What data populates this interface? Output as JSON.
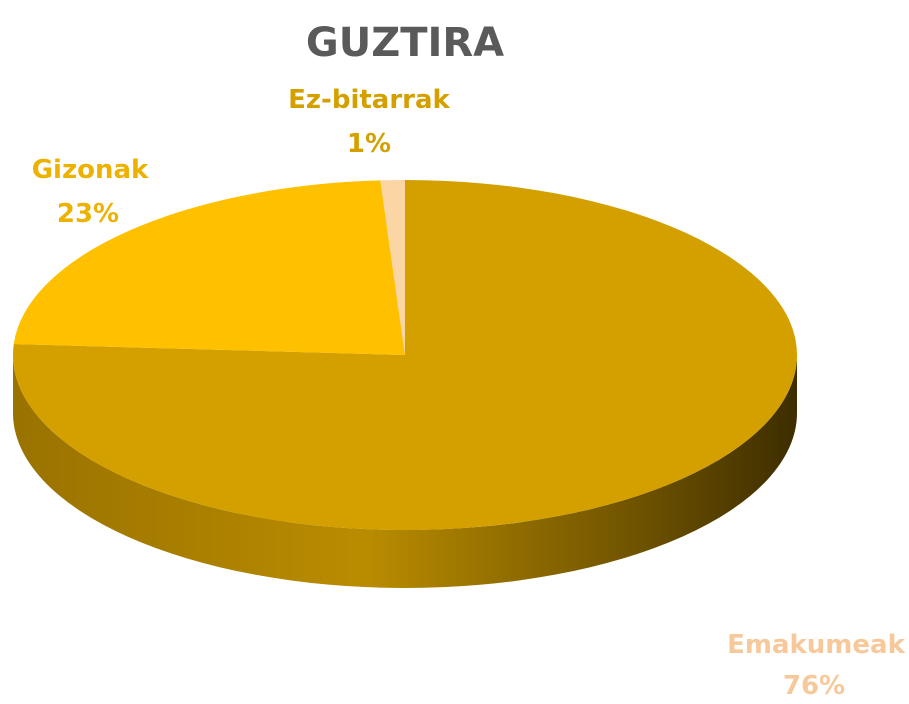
{
  "chart_data": {
    "type": "pie",
    "style": "3d",
    "title": "GUZTIRA",
    "slices": [
      {
        "name": "Emakumeak",
        "value": 76,
        "label": "76%",
        "color": "#D4A000",
        "label_color": "#F7C99A"
      },
      {
        "name": "Gizonak",
        "value": 23,
        "label": "23%",
        "color": "#FFC000",
        "label_color": "#EDB200"
      },
      {
        "name": "Ez-bitarrak",
        "value": 1,
        "label": "1%",
        "color": "#FBD5A4",
        "label_color": "#D4A000"
      }
    ],
    "legend": "none"
  }
}
